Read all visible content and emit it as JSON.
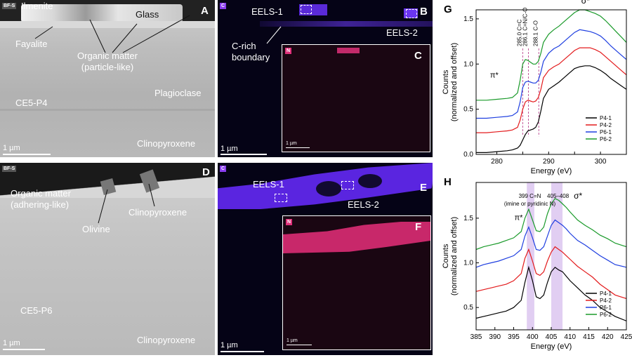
{
  "panel_a": {
    "letter": "A",
    "badge": "BF-S",
    "labels": {
      "ilmenite": "Ilmenite",
      "glass": "Glass",
      "fayalite": "Fayalite",
      "organic": "Organic matter\n(particle-like)",
      "plagioclase": "Plagioclase",
      "sample": "CE5-P4",
      "clinopyroxene": "Clinopyroxene"
    },
    "scalebar": "1 µm"
  },
  "panel_b": {
    "letter": "B",
    "badge": "C",
    "eels1": "EELS-1",
    "eels2": "EELS-2",
    "boundary": "C-rich\nboundary",
    "scalebar": "1 µm"
  },
  "panel_c": {
    "letter": "C",
    "badge": "N",
    "scalebar": "1 µm"
  },
  "panel_d": {
    "letter": "D",
    "badge": "BF-S",
    "labels": {
      "organic": "Organic matter\n(adhering-like)",
      "olivine": "Olivine",
      "clinopyroxene_top": "Clinopyroxene",
      "sample": "CE5-P6",
      "clinopyroxene": "Clinopyroxene"
    },
    "scalebar": "1 µm"
  },
  "panel_e": {
    "letter": "E",
    "badge": "C",
    "eels1": "EELS-1",
    "eels2": "EELS-2",
    "scalebar": "1 µm"
  },
  "panel_f": {
    "letter": "F",
    "badge": "N",
    "scalebar": "1 µm"
  },
  "colors": {
    "p4_1": "#000000",
    "p4_2": "#e31a1c",
    "p6_1": "#1f3fe0",
    "p6_2": "#1a9a2a",
    "carbon_map": "#7030ff",
    "nitrogen_map": "#ff2a7a",
    "dashed_ref": "#c05a9a",
    "shade": "#d9c2ef"
  },
  "chart_data": [
    {
      "type": "line",
      "panel": "G",
      "xlabel": "Energy (eV)",
      "ylabel": "Counts\n(normalized and offset)",
      "xlim": [
        276,
        305
      ],
      "ylim": [
        0.0,
        1.6
      ],
      "xticks": [
        280,
        285,
        290,
        295,
        300
      ],
      "xtick_labels": [
        "280",
        "",
        "290",
        "",
        "300"
      ],
      "yticks": [
        0.0,
        0.5,
        1.0,
        1.5
      ],
      "ytick_labels": [
        "0.0",
        "0.5",
        "1.0",
        "1.5"
      ],
      "annotations": [
        "π*",
        "σ*",
        "285.0 C=C",
        "286.1 C=N/C-O",
        "288.1 C-O"
      ],
      "ref_lines": [
        285.0,
        286.1,
        288.1
      ],
      "legend": "bottom-right",
      "series": [
        {
          "name": "P4-1",
          "color": "#000000",
          "x": [
            276,
            278,
            280,
            282,
            283,
            284,
            284.5,
            285,
            285.5,
            286,
            286.5,
            287,
            287.5,
            288,
            288.5,
            289,
            290,
            291,
            292,
            293,
            294,
            295,
            296,
            297,
            298,
            299,
            300,
            301,
            302,
            303,
            304,
            305
          ],
          "y": [
            0.02,
            0.02,
            0.03,
            0.04,
            0.05,
            0.07,
            0.1,
            0.16,
            0.22,
            0.26,
            0.27,
            0.28,
            0.3,
            0.36,
            0.48,
            0.62,
            0.72,
            0.76,
            0.8,
            0.85,
            0.9,
            0.95,
            0.97,
            0.98,
            0.98,
            0.96,
            0.93,
            0.89,
            0.84,
            0.8,
            0.76,
            0.72
          ]
        },
        {
          "name": "P4-2",
          "color": "#e31a1c",
          "x": [
            276,
            278,
            280,
            282,
            283,
            284,
            284.5,
            285,
            285.5,
            286,
            286.5,
            287,
            287.5,
            288,
            288.5,
            289,
            290,
            291,
            292,
            293,
            294,
            295,
            296,
            297,
            298,
            299,
            300,
            301,
            302,
            303,
            304,
            305
          ],
          "y": [
            0.24,
            0.24,
            0.25,
            0.26,
            0.27,
            0.3,
            0.38,
            0.5,
            0.58,
            0.6,
            0.59,
            0.58,
            0.59,
            0.63,
            0.72,
            0.85,
            0.93,
            0.97,
            1.0,
            1.05,
            1.1,
            1.15,
            1.18,
            1.18,
            1.18,
            1.16,
            1.13,
            1.08,
            1.03,
            0.98,
            0.93,
            0.88
          ]
        },
        {
          "name": "P6-1",
          "color": "#1f3fe0",
          "x": [
            276,
            278,
            280,
            282,
            283,
            284,
            284.5,
            285,
            285.5,
            286,
            286.5,
            287,
            287.5,
            288,
            288.5,
            289,
            290,
            291,
            292,
            293,
            294,
            295,
            296,
            297,
            298,
            299,
            300,
            301,
            302,
            303,
            304,
            305
          ],
          "y": [
            0.4,
            0.4,
            0.41,
            0.42,
            0.43,
            0.47,
            0.58,
            0.74,
            0.8,
            0.81,
            0.8,
            0.79,
            0.79,
            0.82,
            0.91,
            1.03,
            1.12,
            1.17,
            1.2,
            1.25,
            1.3,
            1.35,
            1.38,
            1.37,
            1.36,
            1.34,
            1.31,
            1.26,
            1.2,
            1.15,
            1.1,
            1.05
          ]
        },
        {
          "name": "P6-2",
          "color": "#1a9a2a",
          "x": [
            276,
            278,
            280,
            282,
            283,
            284,
            284.5,
            285,
            285.5,
            286,
            286.5,
            287,
            287.5,
            288,
            288.5,
            289,
            290,
            291,
            292,
            293,
            294,
            295,
            296,
            297,
            298,
            299,
            300,
            301,
            302,
            303,
            304,
            305
          ],
          "y": [
            0.6,
            0.6,
            0.61,
            0.62,
            0.63,
            0.68,
            0.82,
            1.0,
            1.05,
            1.04,
            1.02,
            1.0,
            1.0,
            1.03,
            1.12,
            1.24,
            1.33,
            1.38,
            1.42,
            1.47,
            1.52,
            1.57,
            1.6,
            1.6,
            1.58,
            1.56,
            1.53,
            1.48,
            1.42,
            1.36,
            1.3,
            1.24
          ]
        }
      ]
    },
    {
      "type": "line",
      "panel": "H",
      "xlabel": "Energy (eV)",
      "ylabel": "Counts\n(normalized and offset)",
      "xlim": [
        385,
        425
      ],
      "ylim": [
        0.25,
        1.9
      ],
      "xticks": [
        385,
        390,
        395,
        400,
        405,
        410,
        415,
        420,
        425
      ],
      "xtick_labels": [
        "385",
        "390",
        "395",
        "400",
        "405",
        "410",
        "415",
        "420",
        "425"
      ],
      "yticks": [
        0.5,
        1.0,
        1.5
      ],
      "ytick_labels": [
        "0.5",
        "1.0",
        "1.5"
      ],
      "annotations": [
        "399 C=N",
        "(imine or pyridinic N)",
        "405–408",
        "π*",
        "σ*"
      ],
      "shaded_regions": [
        [
          398.5,
          400.5
        ],
        [
          405,
          408
        ]
      ],
      "legend": "bottom-right",
      "series": [
        {
          "name": "P4-1",
          "color": "#000000",
          "x": [
            385,
            387,
            389,
            391,
            393,
            395,
            397,
            398,
            399,
            400,
            401,
            402,
            403,
            404,
            405,
            406,
            407,
            408,
            409,
            410,
            412,
            414,
            416,
            418,
            420,
            422,
            425
          ],
          "y": [
            0.38,
            0.4,
            0.42,
            0.44,
            0.46,
            0.5,
            0.58,
            0.78,
            0.95,
            0.8,
            0.62,
            0.6,
            0.64,
            0.78,
            0.9,
            0.95,
            0.92,
            0.9,
            0.85,
            0.8,
            0.72,
            0.64,
            0.58,
            0.5,
            0.45,
            0.4,
            0.35
          ]
        },
        {
          "name": "P4-2",
          "color": "#e31a1c",
          "x": [
            385,
            387,
            389,
            391,
            393,
            395,
            397,
            398,
            399,
            400,
            401,
            402,
            403,
            404,
            405,
            406,
            407,
            408,
            409,
            410,
            412,
            414,
            416,
            418,
            420,
            422,
            425
          ],
          "y": [
            0.68,
            0.7,
            0.72,
            0.74,
            0.76,
            0.8,
            0.88,
            1.05,
            1.15,
            1.02,
            0.88,
            0.86,
            0.9,
            1.02,
            1.12,
            1.18,
            1.15,
            1.12,
            1.08,
            1.04,
            0.96,
            0.9,
            0.84,
            0.76,
            0.7,
            0.64,
            0.6
          ]
        },
        {
          "name": "P6-1",
          "color": "#1f3fe0",
          "x": [
            385,
            387,
            389,
            391,
            393,
            395,
            397,
            398,
            399,
            400,
            401,
            402,
            403,
            404,
            405,
            406,
            407,
            408,
            409,
            410,
            412,
            414,
            416,
            418,
            420,
            422,
            425
          ],
          "y": [
            0.95,
            0.98,
            1.0,
            1.02,
            1.05,
            1.08,
            1.15,
            1.3,
            1.4,
            1.28,
            1.15,
            1.14,
            1.18,
            1.3,
            1.42,
            1.48,
            1.45,
            1.42,
            1.38,
            1.33,
            1.25,
            1.2,
            1.14,
            1.08,
            1.03,
            0.98,
            0.95
          ]
        },
        {
          "name": "P6-2",
          "color": "#1a9a2a",
          "x": [
            385,
            387,
            389,
            391,
            393,
            395,
            397,
            398,
            399,
            400,
            401,
            402,
            403,
            404,
            405,
            406,
            407,
            408,
            409,
            410,
            412,
            414,
            416,
            418,
            420,
            422,
            425
          ],
          "y": [
            1.15,
            1.18,
            1.2,
            1.22,
            1.25,
            1.28,
            1.35,
            1.5,
            1.6,
            1.48,
            1.36,
            1.35,
            1.4,
            1.55,
            1.66,
            1.72,
            1.7,
            1.66,
            1.62,
            1.57,
            1.48,
            1.42,
            1.37,
            1.31,
            1.27,
            1.22,
            1.18
          ]
        }
      ]
    }
  ]
}
